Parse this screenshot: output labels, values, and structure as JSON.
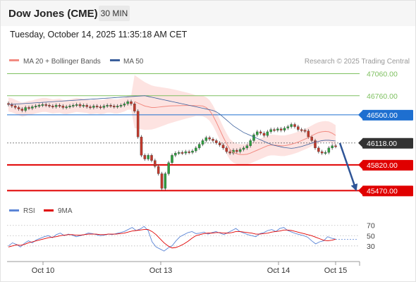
{
  "header": {
    "title": "Dow Jones (CME)",
    "timeframe": "30 MIN"
  },
  "datetime": "Tuesday, October 14, 2025 11:35:18 AM CET",
  "credit": "Research © 2025 Trading Central",
  "legend": [
    {
      "label": "MA 20 + Bollinger Bands",
      "color": "#f28b82"
    },
    {
      "label": "MA 50",
      "color": "#3a5f9c"
    }
  ],
  "levels": [
    {
      "value": 47060,
      "label": "47060.00",
      "color": "#7ec060",
      "style": "text"
    },
    {
      "value": 46760,
      "label": "46760.00",
      "color": "#7ec060",
      "style": "text"
    },
    {
      "value": 46500,
      "label": "46500.00",
      "color": "#1e6fd0",
      "style": "box"
    },
    {
      "value": 46118,
      "label": "46118.00",
      "color": "#333333",
      "style": "box"
    },
    {
      "value": 45820,
      "label": "45820.00",
      "color": "#e00000",
      "style": "box"
    },
    {
      "value": 45470,
      "label": "45470.00",
      "color": "#e00000",
      "style": "box"
    }
  ],
  "chart_data": {
    "type": "candlestick",
    "x_ticks": [
      "Oct 10",
      "Oct 13",
      "Oct 14",
      "Oct 15"
    ],
    "price_ylim": [
      45340,
      47160
    ],
    "closes": [
      46640,
      46620,
      46600,
      46580,
      46560,
      46600,
      46590,
      46610,
      46620,
      46630,
      46640,
      46630,
      46620,
      46610,
      46630,
      46620,
      46600,
      46610,
      46620,
      46630,
      46640,
      46620,
      46630,
      46610,
      46600,
      46620,
      46610,
      46600,
      46620,
      46630,
      46620,
      46610,
      46620,
      46630,
      46650,
      46680,
      46650,
      46550,
      46200,
      45950,
      45900,
      45950,
      45880,
      45800,
      45700,
      45500,
      45700,
      45850,
      45950,
      45980,
      45990,
      45980,
      46000,
      45990,
      46010,
      46050,
      46100,
      46150,
      46190,
      46170,
      46150,
      46120,
      46090,
      46050,
      46000,
      45980,
      46020,
      46000,
      46030,
      46050,
      46080,
      46150,
      46230,
      46270,
      46250,
      46220,
      46270,
      46300,
      46290,
      46310,
      46290,
      46320,
      46340,
      46370,
      46340,
      46300,
      46290,
      46280,
      46200,
      46150,
      46050,
      46000,
      45980,
      45990,
      46050,
      46080,
      46070
    ],
    "ma20": [
      46680,
      46660,
      46640,
      46620,
      46610,
      46600,
      46600,
      46605,
      46610,
      46615,
      46620,
      46622,
      46624,
      46625,
      46626,
      46627,
      46627,
      46626,
      46625,
      46624,
      46620,
      46600,
      46560,
      46490,
      46400,
      46300,
      46200,
      46110,
      46030,
      45990,
      45970,
      45960,
      45960,
      45965,
      45980,
      46000,
      46020,
      46040,
      46060,
      46080,
      46090,
      46090,
      46085,
      46080,
      46080,
      46090,
      46100,
      46115,
      46130,
      46150,
      46170,
      46190,
      46215,
      46240,
      46260,
      46270,
      46275,
      46270,
      46250,
      46220
    ],
    "ma20_start_index": 37,
    "ma50": [
      46760,
      46750,
      46740,
      46730,
      46720,
      46710,
      46700,
      46690,
      46680,
      46670,
      46660,
      46650,
      46640,
      46630,
      46620,
      46610,
      46600,
      46590,
      46580,
      46570,
      46560,
      46540,
      46510,
      46470,
      46430,
      46390,
      46350,
      46320,
      46290,
      46260,
      46240,
      46220,
      46200,
      46180,
      46160,
      46140,
      46120,
      46100,
      46085,
      46075,
      46065,
      46055,
      46050,
      46045,
      46050,
      46060,
      46070,
      46085,
      46100,
      46115,
      46130,
      46140,
      46150,
      46155,
      46155,
      46150,
      46145
    ],
    "ma50_start_index": 40,
    "projection": {
      "from": 46118,
      "to": 45470
    },
    "rsi_ylim": [
      5,
      82
    ],
    "rsi_ticks": [
      70,
      50,
      30
    ],
    "rsi_series": [
      {
        "name": "RSI",
        "color": "#5b85d6"
      },
      {
        "name": "9MA",
        "color": "#e00000"
      }
    ],
    "rsi": [
      30,
      36,
      33,
      28,
      35,
      40,
      36,
      42,
      45,
      48,
      50,
      46,
      52,
      55,
      50,
      53,
      51,
      48,
      50,
      52,
      55,
      54,
      52,
      50,
      51,
      53,
      52,
      54,
      56,
      58,
      62,
      66,
      60,
      63,
      68,
      60,
      38,
      28,
      24,
      20,
      26,
      30,
      40,
      48,
      52,
      56,
      58,
      54,
      55,
      57,
      53,
      56,
      58,
      55,
      52,
      56,
      60,
      64,
      58,
      55,
      52,
      50,
      48,
      54,
      56,
      60,
      62,
      58,
      64,
      66,
      60,
      57,
      54,
      52,
      50,
      47,
      40,
      34,
      38,
      40,
      48,
      45,
      43
    ],
    "rsi9": [
      28,
      30,
      32,
      31,
      33,
      36,
      38,
      40,
      42,
      44,
      46,
      47,
      48,
      50,
      51,
      52,
      52,
      51,
      51,
      52,
      53,
      53,
      53,
      52,
      52,
      53,
      53,
      53,
      54,
      55,
      57,
      59,
      60,
      61,
      62,
      62,
      58,
      52,
      44,
      36,
      30,
      26,
      27,
      30,
      34,
      39,
      45,
      50,
      52,
      54,
      55,
      55,
      56,
      56,
      55,
      55,
      56,
      58,
      58,
      57,
      56,
      55,
      53,
      53,
      54,
      55,
      57,
      58,
      59,
      61,
      61,
      60,
      58,
      56,
      54,
      52,
      50,
      47,
      44,
      41,
      40,
      41,
      43
    ]
  }
}
